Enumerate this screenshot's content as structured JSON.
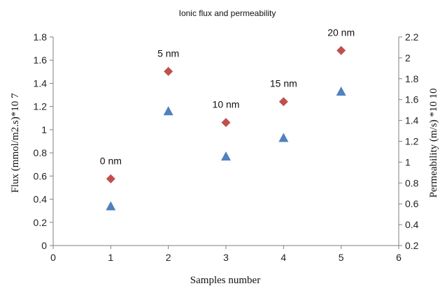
{
  "chart_data": {
    "type": "scatter",
    "title": "Ionic flux and permeability",
    "xlabel": "Samples number",
    "ylabel_left": "Flux (mmol/m2.s)*10 7",
    "ylabel_right": "Permeability (m/s) *10 10",
    "xlim": [
      0,
      6
    ],
    "ylim_left": [
      0,
      1.8
    ],
    "ylim_right": [
      0.2,
      2.2
    ],
    "x_ticks": [
      "0",
      "1",
      "2",
      "3",
      "4",
      "5",
      "6"
    ],
    "y_left_ticks": [
      "0",
      "0.2",
      "0.4",
      "0.6",
      "0.8",
      "1",
      "1.2",
      "1.4",
      "1.6",
      "1.8"
    ],
    "y_right_ticks": [
      "0.2",
      "0.4",
      "0.6",
      "0.8",
      "1",
      "1.2",
      "1.4",
      "1.6",
      "1.8",
      "2",
      "2.2"
    ],
    "grid": false,
    "legend": "none",
    "series": [
      {
        "axis": "left",
        "marker": "triangle",
        "color": "#4f81bd",
        "x": [
          1,
          2,
          3,
          4,
          5
        ],
        "y": [
          0.34,
          1.16,
          0.77,
          0.93,
          1.33
        ]
      },
      {
        "axis": "right",
        "marker": "diamond",
        "color": "#c0504d",
        "x": [
          1,
          2,
          3,
          4,
          5
        ],
        "y": [
          0.84,
          1.87,
          1.38,
          1.58,
          2.07
        ],
        "point_labels": [
          "0 nm",
          "5 nm",
          "10 nm",
          "15 nm",
          "20 nm"
        ]
      }
    ]
  }
}
